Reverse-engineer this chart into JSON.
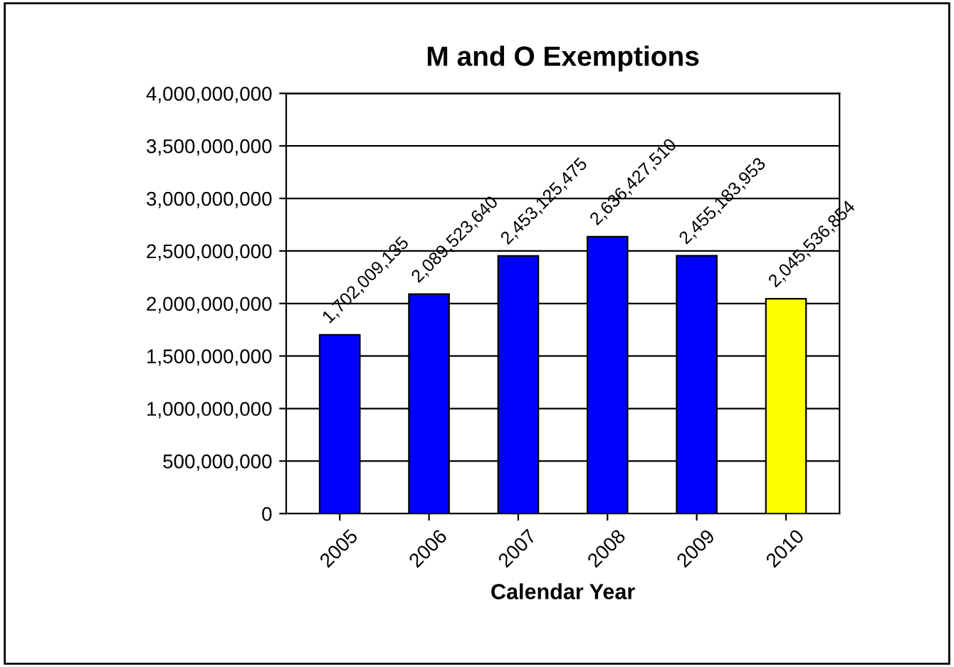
{
  "chart_data": {
    "type": "bar",
    "title": "M and O Exemptions",
    "xlabel": "Calendar Year",
    "categories": [
      "2005",
      "2006",
      "2007",
      "2008",
      "2009",
      "2010"
    ],
    "values": [
      1702009135,
      2089523640,
      2453125475,
      2636427510,
      2455183953,
      2045536854
    ],
    "colors": [
      "#0000ff",
      "#0000ff",
      "#0000ff",
      "#0000ff",
      "#0000ff",
      "#ffff00"
    ],
    "value_labels": [
      "1,702,009,135",
      "2,089,523,640",
      "2,453,125,475",
      "2,636,427,510",
      "2,455,183,953",
      "2,045,536,854"
    ],
    "ylim": [
      0,
      4000000000
    ],
    "yticks": [
      0,
      {
        "value": 500000000,
        "label": "500,000,000"
      },
      {
        "value": 1000000000,
        "label": "1,000,000,000"
      },
      {
        "value": 1500000000,
        "label": "1,500,000,000"
      },
      {
        "value": 2000000000,
        "label": "2,000,000,000"
      },
      {
        "value": 2500000000,
        "label": "2,500,000,000"
      },
      {
        "value": 3000000000,
        "label": "3,000,000,000"
      },
      {
        "value": 3500000000,
        "label": "3,500,000,000"
      },
      {
        "value": 4000000000,
        "label": "4,000,000,000"
      }
    ],
    "grid": "y"
  }
}
